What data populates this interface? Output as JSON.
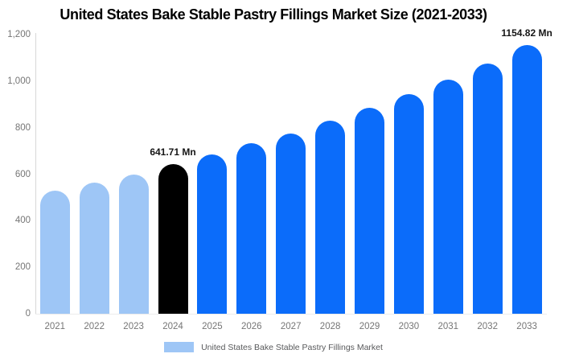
{
  "title": "United States Bake Stable Pastry Fillings Market Size (2021-2033)",
  "chart_data": {
    "type": "bar",
    "categories": [
      "2021",
      "2022",
      "2023",
      "2024",
      "2025",
      "2026",
      "2027",
      "2028",
      "2029",
      "2030",
      "2031",
      "2032",
      "2033"
    ],
    "values": [
      530,
      563,
      599,
      641.71,
      683,
      732,
      776,
      830,
      886,
      944,
      1007,
      1075,
      1154.82
    ],
    "unit": "Mn",
    "title": "United States Bake Stable Pastry Fillings Market Size (2021-2033)",
    "xlabel": "",
    "ylabel": "",
    "ylim": [
      0,
      1200
    ],
    "grid": false,
    "legend_position": "bottom",
    "yticks": [
      "1,200",
      "1,000",
      "800",
      "600",
      "400",
      "200",
      "0"
    ],
    "ytick_values": [
      1200,
      1000,
      800,
      600,
      400,
      200,
      0
    ],
    "bar_colors": [
      "#9ec6f6",
      "#9ec6f6",
      "#9ec6f6",
      "#000000",
      "#0b6cfa",
      "#0b6cfa",
      "#0b6cfa",
      "#0b6cfa",
      "#0b6cfa",
      "#0b6cfa",
      "#0b6cfa",
      "#0b6cfa",
      "#0b6cfa"
    ],
    "data_labels": [
      {
        "index": 3,
        "text": "641.71 Mn"
      },
      {
        "index": 12,
        "text": "1154.82 Mn"
      }
    ],
    "legend": {
      "label": "United States Bake Stable Pastry Fillings Market",
      "swatch_color": "#9ec6f6"
    },
    "colors": {
      "light_blue_bar": "#9ec6f6",
      "highlight_bar": "#000000",
      "blue_bar": "#0b6cfa",
      "axis_line": "#d8d8d8",
      "baseline": "#ececec",
      "tick_text": "#757575",
      "legend_text": "#58595b",
      "data_label_text": "#151515",
      "title_text": "#000000",
      "background": "#ffffff"
    }
  }
}
